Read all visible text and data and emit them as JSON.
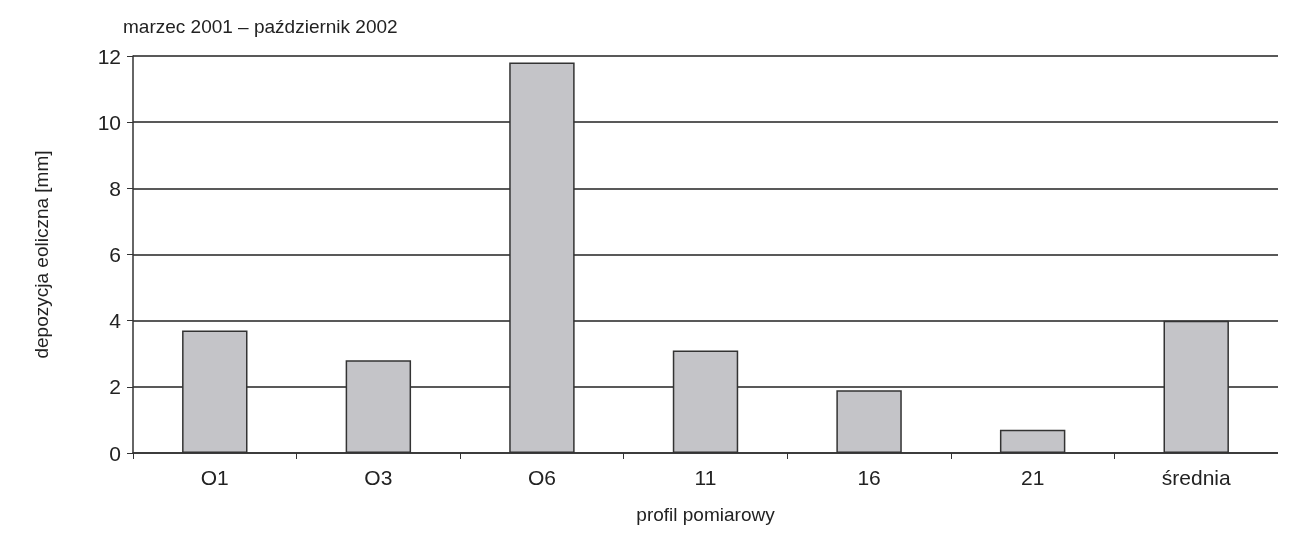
{
  "chart_data": {
    "type": "bar",
    "title": "marzec 2001 – październik 2002",
    "xlabel": "profil pomiarowy",
    "ylabel": "depozycja eoliczna [mm]",
    "categories": [
      "O1",
      "O3",
      "O6",
      "11",
      "16",
      "21",
      "średnia"
    ],
    "values": [
      3.7,
      2.8,
      11.8,
      3.1,
      1.9,
      0.7,
      4.0
    ],
    "color": "#c4c4c8",
    "ylim": [
      0,
      12
    ],
    "yticks": [
      0,
      2,
      4,
      6,
      8,
      10,
      12
    ],
    "grid": "y"
  }
}
